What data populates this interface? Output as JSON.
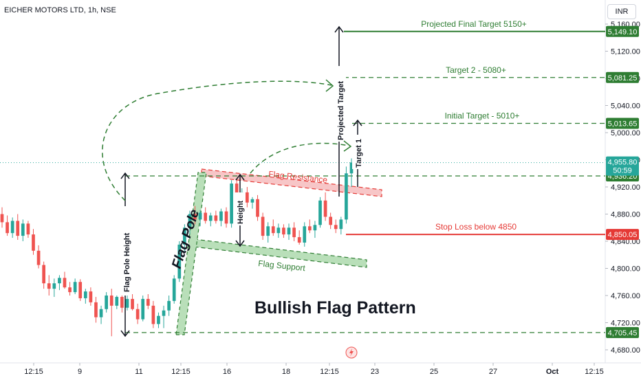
{
  "symbol_title": "EICHER MOTORS LTD, 1h, NSE",
  "currency": "INR",
  "chart_data": {
    "type": "candlestick",
    "title": "Bullish Flag Pattern",
    "ylim": [
      4675,
      5165
    ],
    "y_ticks": [
      "4,680.00",
      "4,720.00",
      "4,760.00",
      "4,800.00",
      "4,840.00",
      "4,880.00",
      "4,920.00",
      "4,960.00",
      "5,000.00",
      "5,040.00",
      "5,080.00",
      "5,120.00",
      "5,160.00"
    ],
    "x_ticks": [
      "12:15",
      "9",
      "11",
      "12:15",
      "16",
      "18",
      "12:15",
      "23",
      "25",
      "27",
      "Oct",
      "12:15"
    ],
    "candles": [
      [
        4880,
        4890,
        4860,
        4868
      ],
      [
        4868,
        4878,
        4848,
        4852
      ],
      [
        4852,
        4875,
        4845,
        4870
      ],
      [
        4870,
        4880,
        4842,
        4848
      ],
      [
        4848,
        4872,
        4840,
        4866
      ],
      [
        4866,
        4870,
        4845,
        4850
      ],
      [
        4850,
        4858,
        4820,
        4826
      ],
      [
        4826,
        4834,
        4800,
        4805
      ],
      [
        4805,
        4810,
        4770,
        4778
      ],
      [
        4778,
        4790,
        4760,
        4770
      ],
      [
        4770,
        4785,
        4758,
        4778
      ],
      [
        4778,
        4790,
        4768,
        4786
      ],
      [
        4786,
        4795,
        4770,
        4772
      ],
      [
        4772,
        4780,
        4760,
        4765
      ],
      [
        4765,
        4785,
        4762,
        4780
      ],
      [
        4780,
        4784,
        4752,
        4756
      ],
      [
        4756,
        4770,
        4748,
        4766
      ],
      [
        4766,
        4772,
        4745,
        4750
      ],
      [
        4750,
        4758,
        4720,
        4728
      ],
      [
        4728,
        4745,
        4718,
        4740
      ],
      [
        4740,
        4765,
        4735,
        4760
      ],
      [
        4760,
        4770,
        4700,
        4745
      ],
      [
        4745,
        4760,
        4740,
        4758
      ],
      [
        4758,
        4762,
        4735,
        4742
      ],
      [
        4742,
        4760,
        4738,
        4755
      ],
      [
        4755,
        4762,
        4738,
        4740
      ],
      [
        4740,
        4748,
        4718,
        4725
      ],
      [
        4725,
        4760,
        4722,
        4755
      ],
      [
        4755,
        4762,
        4740,
        4745
      ],
      [
        4745,
        4752,
        4712,
        4718
      ],
      [
        4718,
        4735,
        4712,
        4730
      ],
      [
        4730,
        4745,
        4712,
        4738
      ],
      [
        4738,
        4760,
        4730,
        4752
      ],
      [
        4752,
        4790,
        4748,
        4785
      ],
      [
        4785,
        4840,
        4780,
        4835
      ],
      [
        4835,
        4865,
        4825,
        4860
      ],
      [
        4860,
        4885,
        4850,
        4880
      ],
      [
        4880,
        4892,
        4865,
        4872
      ],
      [
        4872,
        4886,
        4862,
        4882
      ],
      [
        4882,
        4890,
        4866,
        4870
      ],
      [
        4870,
        4882,
        4862,
        4878
      ],
      [
        4878,
        4885,
        4866,
        4870
      ],
      [
        4870,
        4888,
        4862,
        4884
      ],
      [
        4884,
        4890,
        4860,
        4866
      ],
      [
        4866,
        4930,
        4860,
        4925
      ],
      [
        4925,
        4932,
        4895,
        4905
      ],
      [
        4905,
        4918,
        4885,
        4912
      ],
      [
        4912,
        4920,
        4890,
        4897
      ],
      [
        4897,
        4905,
        4888,
        4902
      ],
      [
        4902,
        4908,
        4870,
        4876
      ],
      [
        4876,
        4882,
        4842,
        4848
      ],
      [
        4848,
        4868,
        4838,
        4862
      ],
      [
        4862,
        4872,
        4848,
        4852
      ],
      [
        4852,
        4866,
        4845,
        4860
      ],
      [
        4860,
        4865,
        4845,
        4850
      ],
      [
        4850,
        4866,
        4842,
        4860
      ],
      [
        4860,
        4868,
        4840,
        4846
      ],
      [
        4846,
        4856,
        4835,
        4838
      ],
      [
        4838,
        4868,
        4832,
        4862
      ],
      [
        4862,
        4872,
        4852,
        4856
      ],
      [
        4856,
        4870,
        4845,
        4864
      ],
      [
        4864,
        4905,
        4860,
        4900
      ],
      [
        4900,
        4912,
        4870,
        4876
      ],
      [
        4876,
        4882,
        4858,
        4864
      ],
      [
        4864,
        4872,
        4852,
        4858
      ],
      [
        4858,
        4876,
        4850,
        4872
      ],
      [
        4872,
        4950,
        4866,
        4940
      ],
      [
        4940,
        4962,
        4920,
        4956
      ]
    ],
    "levels": [
      {
        "label": "Projected Final Target 5150+",
        "value": 5149.1,
        "tag": "5,149.10",
        "color": "#2e7d32",
        "style": "solid"
      },
      {
        "label": "Target 2 - 5080+",
        "value": 5081.25,
        "tag": "5,081.25",
        "color": "#2e7d32",
        "style": "dashed"
      },
      {
        "label": "Initial Target - 5010+",
        "value": 5013.65,
        "tag": "5,013.65",
        "color": "#2e7d32",
        "style": "dashed"
      },
      {
        "label": "",
        "value": 4936.2,
        "tag": "4,936.20",
        "color": "#2e7d32",
        "style": "dashed"
      },
      {
        "label": "Stop Loss below 4850",
        "value": 4850.05,
        "tag": "4,850.05",
        "color": "#e53935",
        "style": "solid"
      },
      {
        "label": "",
        "value": 4705.45,
        "tag": "4,705.45",
        "color": "#2e7d32",
        "style": "dashed"
      }
    ],
    "last_price": {
      "value": 4955.8,
      "tag": "4,955.80",
      "countdown": "50:59"
    },
    "annotations": {
      "flag_pole": "Flag Pole",
      "flag_pole_height": "Flag Pole Height",
      "height": "Height",
      "flag_resistance": "Flag Resistance",
      "flag_support": "Flag Support",
      "projected_target": "Projected Target",
      "target_1": "Target 1"
    },
    "colors": {
      "up": "#26a69a",
      "down": "#ef5350",
      "green": "#2e7d32",
      "red": "#e53935",
      "price_line": "#26a69a"
    }
  }
}
